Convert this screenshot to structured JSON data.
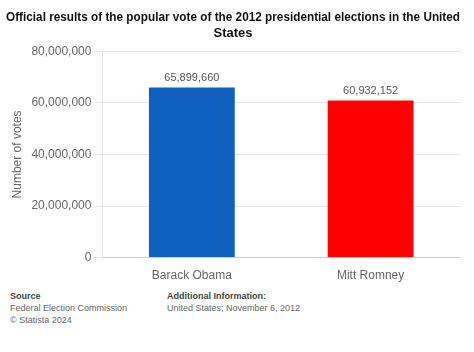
{
  "chart_data": {
    "type": "bar",
    "title": "Official results of the popular vote of the 2012 presidential elections in the United\nStates",
    "categories": [
      "Barack Obama",
      "Mitt Romney"
    ],
    "values": [
      65899660,
      60932152
    ],
    "value_labels": [
      "65,899,660",
      "60,932,152"
    ],
    "data_labels": true,
    "colors": [
      "#1060c0",
      "#ff0000"
    ],
    "ylabel": "Number of votes",
    "ylim": [
      0,
      80000000
    ],
    "yticks": [
      0,
      {
        "value": 20000000,
        "label": "20,000,000"
      },
      {
        "value": 40000000,
        "label": "40,000,000"
      },
      {
        "value": 60000000,
        "label": "60,000,000"
      },
      {
        "value": 80000000,
        "label": "80,000,000"
      }
    ],
    "grid": true,
    "annotations": [
      "Source",
      "Federal Election Commission\n© Statista 2024",
      "Additional Information:",
      "United States; November 6, 2012"
    ]
  }
}
